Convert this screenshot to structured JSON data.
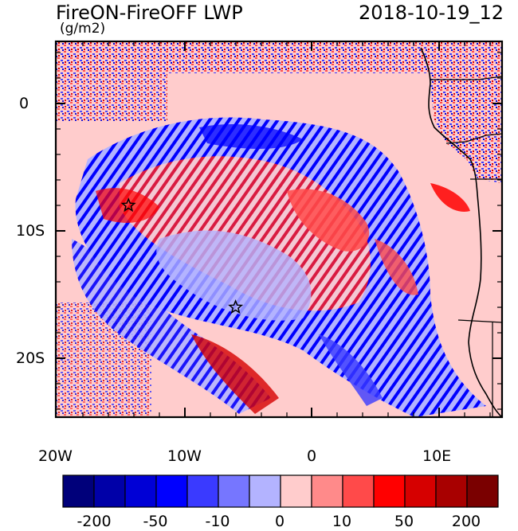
{
  "title_left": "FireON-FireOFF LWP",
  "title_right": "2018-10-19_12",
  "units_label": "(g/m2)",
  "axes": {
    "y_ticks": [
      "0",
      "10S",
      "20S"
    ],
    "x_ticks": [
      "20W",
      "10W",
      "0",
      "10E"
    ]
  },
  "markers": [
    {
      "name": "star-marker-north",
      "lon": -14.3,
      "lat": -8.0
    },
    {
      "name": "star-marker-south",
      "lon": -5.9,
      "lat": -16.0
    }
  ],
  "colorbar": {
    "labels": [
      "-200",
      "-50",
      "-10",
      "0",
      "10",
      "50",
      "200"
    ],
    "colors": [
      "#00007a",
      "#0000a8",
      "#0000d6",
      "#0000ff",
      "#3a3aff",
      "#7676ff",
      "#b3b3ff",
      "#ffcccc",
      "#ff8a8a",
      "#ff4a4a",
      "#ff0000",
      "#d60000",
      "#a80000",
      "#7a0000"
    ]
  }
}
